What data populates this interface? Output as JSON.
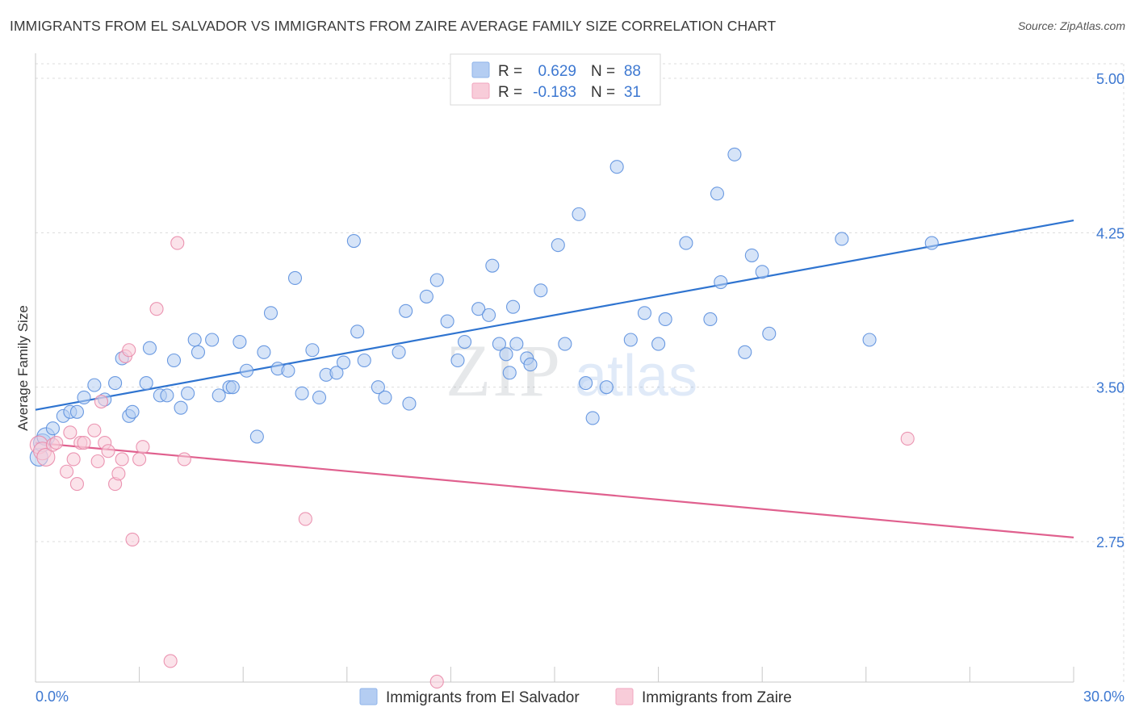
{
  "title": "IMMIGRANTS FROM EL SALVADOR VS IMMIGRANTS FROM ZAIRE AVERAGE FAMILY SIZE CORRELATION CHART",
  "source": "Source: ZipAtlas.com",
  "watermark": {
    "zip": "ZIP",
    "atlas": "atlas"
  },
  "legend": {
    "rows": [
      {
        "r_label": "R =",
        "r_value": "0.629",
        "n_label": "N =",
        "n_value": "88",
        "color": "#8fb4ea"
      },
      {
        "r_label": "R =",
        "r_value": "-0.183",
        "n_label": "N =",
        "n_value": "31",
        "color": "#f2a6bf"
      }
    ]
  },
  "bottom_legend": [
    {
      "label": "Immigrants from El Salvador",
      "color": "#8fb4ea"
    },
    {
      "label": "Immigrants from Zaire",
      "color": "#f2a6bf"
    }
  ],
  "chart_data": {
    "type": "scatter",
    "title": "IMMIGRANTS FROM EL SALVADOR VS IMMIGRANTS FROM ZAIRE AVERAGE FAMILY SIZE CORRELATION CHART",
    "xlabel": "",
    "ylabel": "Average Family Size",
    "xlim": [
      0,
      30
    ],
    "ylim": [
      2.0,
      5.1
    ],
    "x_tick_labels": [
      "0.0%",
      "30.0%"
    ],
    "y_ticks": [
      2.75,
      3.5,
      4.25,
      5.0
    ],
    "y_tick_labels": [
      "2.75",
      "3.50",
      "4.25",
      "5.00"
    ],
    "grid": true,
    "legend_position": "top-center",
    "series": [
      {
        "name": "Immigrants from El Salvador",
        "color": "#5b8fde",
        "fill": "#b4cdf2",
        "trend": {
          "x": [
            0,
            30
          ],
          "y": [
            3.39,
            4.31
          ],
          "color": "#2f74d0"
        },
        "points": [
          [
            0.1,
            3.16
          ],
          [
            0.2,
            3.23
          ],
          [
            0.3,
            3.26
          ],
          [
            0.5,
            3.3
          ],
          [
            0.8,
            3.36
          ],
          [
            1.0,
            3.38
          ],
          [
            1.2,
            3.38
          ],
          [
            1.4,
            3.45
          ],
          [
            1.7,
            3.51
          ],
          [
            2.0,
            3.44
          ],
          [
            2.3,
            3.52
          ],
          [
            2.7,
            3.36
          ],
          [
            2.8,
            3.38
          ],
          [
            2.5,
            3.64
          ],
          [
            3.2,
            3.52
          ],
          [
            3.3,
            3.69
          ],
          [
            3.6,
            3.46
          ],
          [
            3.8,
            3.46
          ],
          [
            4.0,
            3.63
          ],
          [
            4.2,
            3.4
          ],
          [
            4.4,
            3.47
          ],
          [
            4.6,
            3.73
          ],
          [
            4.7,
            3.67
          ],
          [
            5.1,
            3.73
          ],
          [
            5.3,
            3.46
          ],
          [
            5.6,
            3.5
          ],
          [
            5.7,
            3.5
          ],
          [
            5.9,
            3.72
          ],
          [
            6.1,
            3.58
          ],
          [
            6.4,
            3.26
          ],
          [
            6.6,
            3.67
          ],
          [
            6.8,
            3.86
          ],
          [
            7.0,
            3.59
          ],
          [
            7.3,
            3.58
          ],
          [
            7.5,
            4.03
          ],
          [
            7.7,
            3.47
          ],
          [
            8.0,
            3.68
          ],
          [
            8.2,
            3.45
          ],
          [
            8.4,
            3.56
          ],
          [
            8.7,
            3.57
          ],
          [
            8.9,
            3.62
          ],
          [
            9.2,
            4.21
          ],
          [
            9.3,
            3.77
          ],
          [
            9.5,
            3.63
          ],
          [
            9.9,
            3.5
          ],
          [
            10.1,
            3.45
          ],
          [
            10.5,
            3.67
          ],
          [
            10.7,
            3.87
          ],
          [
            10.8,
            3.42
          ],
          [
            11.3,
            3.94
          ],
          [
            11.6,
            4.02
          ],
          [
            11.9,
            3.82
          ],
          [
            12.2,
            3.63
          ],
          [
            12.4,
            3.72
          ],
          [
            12.8,
            3.88
          ],
          [
            13.1,
            3.85
          ],
          [
            13.2,
            4.09
          ],
          [
            13.4,
            3.71
          ],
          [
            13.6,
            3.66
          ],
          [
            13.7,
            3.57
          ],
          [
            13.9,
            3.71
          ],
          [
            13.8,
            3.89
          ],
          [
            14.2,
            3.64
          ],
          [
            14.3,
            3.61
          ],
          [
            14.6,
            3.97
          ],
          [
            15.1,
            4.19
          ],
          [
            15.3,
            3.71
          ],
          [
            15.7,
            4.34
          ],
          [
            15.9,
            3.52
          ],
          [
            16.1,
            3.35
          ],
          [
            16.5,
            3.5
          ],
          [
            16.8,
            4.57
          ],
          [
            17.2,
            3.73
          ],
          [
            17.6,
            3.86
          ],
          [
            18.0,
            3.71
          ],
          [
            18.2,
            3.83
          ],
          [
            18.8,
            4.2
          ],
          [
            19.5,
            3.83
          ],
          [
            19.7,
            4.44
          ],
          [
            19.8,
            4.01
          ],
          [
            20.2,
            4.63
          ],
          [
            20.5,
            3.67
          ],
          [
            20.7,
            4.14
          ],
          [
            21.0,
            4.06
          ],
          [
            21.2,
            3.76
          ],
          [
            23.3,
            4.22
          ],
          [
            24.1,
            3.73
          ],
          [
            25.9,
            4.2
          ]
        ]
      },
      {
        "name": "Immigrants from Zaire",
        "color": "#e98aaa",
        "fill": "#f8ccd9",
        "trend": {
          "x": [
            0,
            30
          ],
          "y": [
            3.23,
            2.77
          ],
          "color": "#e0608e"
        },
        "points": [
          [
            0.1,
            3.22
          ],
          [
            0.2,
            3.19
          ],
          [
            0.3,
            3.16
          ],
          [
            0.5,
            3.22
          ],
          [
            0.6,
            3.23
          ],
          [
            0.9,
            3.09
          ],
          [
            1.0,
            3.28
          ],
          [
            1.1,
            3.15
          ],
          [
            1.2,
            3.03
          ],
          [
            1.3,
            3.23
          ],
          [
            1.4,
            3.23
          ],
          [
            1.7,
            3.29
          ],
          [
            1.8,
            3.14
          ],
          [
            1.9,
            3.43
          ],
          [
            2.0,
            3.23
          ],
          [
            2.1,
            3.19
          ],
          [
            2.3,
            3.03
          ],
          [
            2.4,
            3.08
          ],
          [
            2.5,
            3.15
          ],
          [
            2.6,
            3.65
          ],
          [
            2.7,
            3.68
          ],
          [
            2.8,
            2.76
          ],
          [
            3.0,
            3.15
          ],
          [
            3.1,
            3.21
          ],
          [
            3.5,
            3.88
          ],
          [
            3.9,
            2.17
          ],
          [
            4.1,
            4.2
          ],
          [
            4.3,
            3.15
          ],
          [
            7.8,
            2.86
          ],
          [
            11.6,
            2.07
          ],
          [
            25.2,
            3.25
          ]
        ]
      }
    ]
  }
}
